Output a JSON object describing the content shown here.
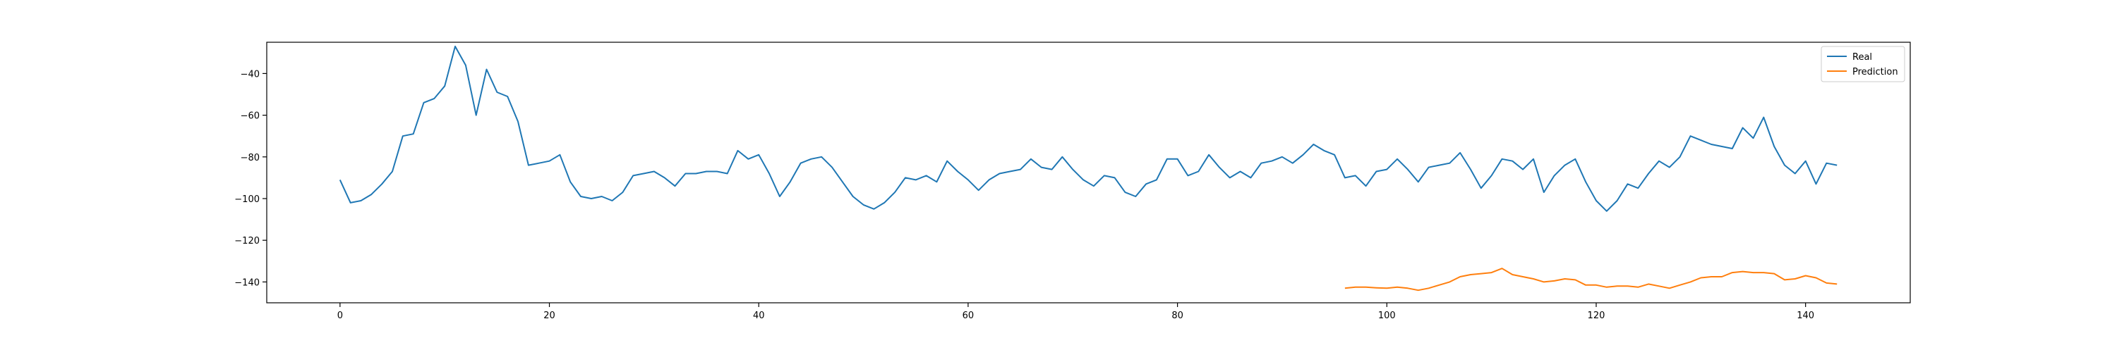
{
  "chart_data": {
    "type": "line",
    "title": "",
    "xlabel": "",
    "ylabel": "",
    "xlim": [
      -7,
      150
    ],
    "ylim": [
      -150,
      -25
    ],
    "xticks": [
      0,
      20,
      40,
      60,
      80,
      100,
      120,
      140
    ],
    "yticks": [
      -140,
      -120,
      -100,
      -80,
      -60,
      -40
    ],
    "grid": false,
    "legend_position": "top-right",
    "series": [
      {
        "name": "Real",
        "color": "#1f77b4",
        "x_start": 0,
        "values": [
          -91,
          -102,
          -101,
          -98,
          -93,
          -87,
          -70,
          -69,
          -54,
          -52,
          -46,
          -27,
          -36,
          -60,
          -38,
          -49,
          -51,
          -63,
          -84,
          -83,
          -82,
          -79,
          -92,
          -99,
          -100,
          -99,
          -101,
          -97,
          -89,
          -88,
          -87,
          -90,
          -94,
          -88,
          -88,
          -87,
          -87,
          -88,
          -77,
          -81,
          -79,
          -88,
          -99,
          -92,
          -83,
          -81,
          -80,
          -85,
          -92,
          -99,
          -103,
          -105,
          -102,
          -97,
          -90,
          -91,
          -89,
          -92,
          -82,
          -87,
          -91,
          -96,
          -91,
          -88,
          -87,
          -86,
          -81,
          -85,
          -86,
          -80,
          -86,
          -91,
          -94,
          -89,
          -90,
          -97,
          -99,
          -93,
          -91,
          -81,
          -81,
          -89,
          -87,
          -79,
          -85,
          -90,
          -87,
          -90,
          -83,
          -82,
          -80,
          -83,
          -79,
          -74,
          -77,
          -79,
          -90,
          -89,
          -94,
          -87,
          -86,
          -81,
          -86,
          -92,
          -85,
          -84,
          -83,
          -78,
          -86,
          -95,
          -89,
          -81,
          -82,
          -86,
          -81,
          -97,
          -89,
          -84,
          -81,
          -92,
          -101,
          -106,
          -101,
          -93,
          -95,
          -88,
          -82,
          -85,
          -80,
          -70,
          -72,
          -74,
          -75,
          -76,
          -66,
          -71,
          -61,
          -75,
          -84,
          -88,
          -82,
          -93,
          -83,
          -84
        ]
      },
      {
        "name": "Prediction",
        "color": "#ff7f0e",
        "x_start": 96,
        "values": [
          -143,
          -142.5,
          -142.5,
          -142.8,
          -143,
          -142.5,
          -143,
          -144,
          -143,
          -141.5,
          -140,
          -137.5,
          -136.5,
          -136,
          -135.5,
          -133.5,
          -136.5,
          -137.5,
          -138.5,
          -140,
          -139.5,
          -138.5,
          -139,
          -141.5,
          -141.5,
          -142.5,
          -142,
          -142,
          -142.5,
          -141,
          -142,
          -143,
          -141.5,
          -140,
          -138,
          -137.5,
          -137.5,
          -135.5,
          -135,
          -135.5,
          -135.5,
          -136,
          -139,
          -138.5,
          -137,
          -138,
          -140.5,
          -141
        ]
      }
    ]
  }
}
